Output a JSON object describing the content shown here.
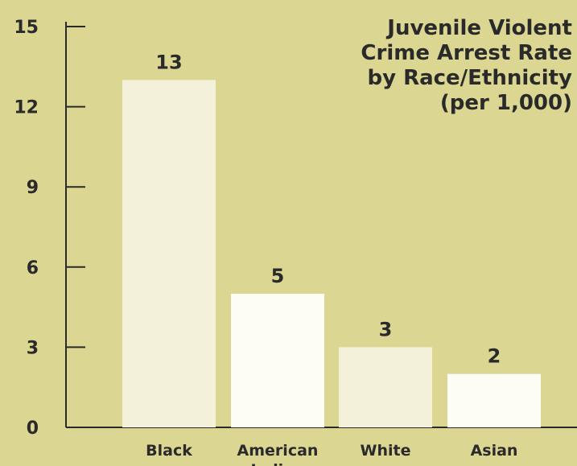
{
  "chart_data": {
    "type": "bar",
    "title_lines": [
      "Juvenile Violent",
      "Crime Arrest Rate",
      "by Race/Ethnicity",
      "(per 1,000)"
    ],
    "categories": [
      "Black",
      "American Indian",
      "White",
      "Asian"
    ],
    "values": [
      13,
      5,
      3,
      2
    ],
    "data_labels": [
      "13",
      "5",
      "3",
      "2"
    ],
    "yticks": [
      "0",
      "3",
      "6",
      "9",
      "12",
      "15"
    ],
    "ylim": [
      0,
      15
    ],
    "xlabel": "",
    "ylabel": "",
    "grid": false,
    "legend": "none",
    "colors": {
      "background": "#dbd692",
      "bars": [
        "#f3f1d9",
        "#fdfdf5",
        "#f3f1d9",
        "#fdfdf5"
      ],
      "text": "#2a2a2a",
      "axis": "#2a2a2a"
    }
  }
}
